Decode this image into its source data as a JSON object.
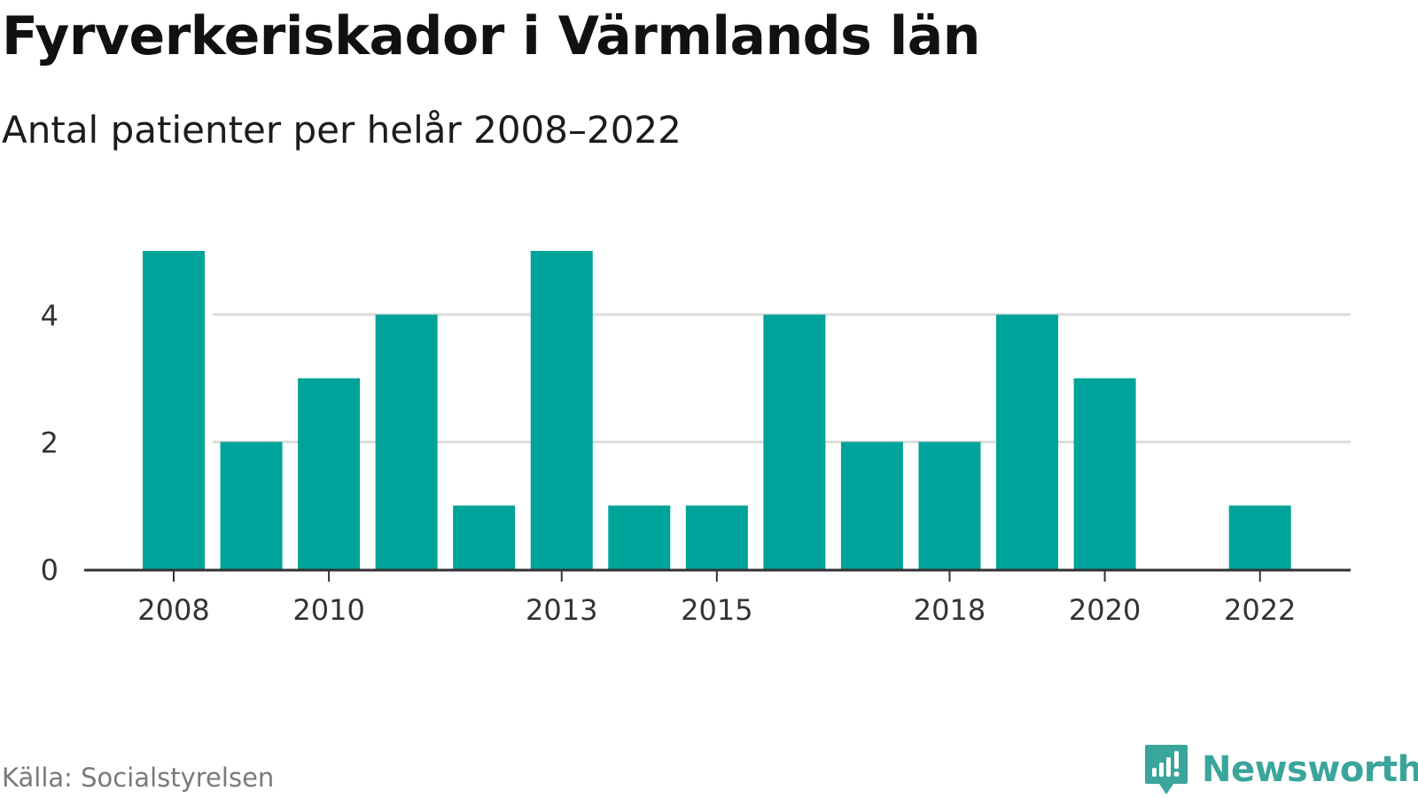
{
  "title": "Fyrverkeriskador i Värmlands län",
  "subtitle": "Antal patienter per helår 2008–2022",
  "source": "Källa: Socialstyrelsen",
  "brand": {
    "name": "Newsworthy",
    "icon": "newsworthy-logo-icon"
  },
  "colors": {
    "bar": "#00a399",
    "grid": "#dcdcdc",
    "axis": "#333333",
    "brand": "#3aa59b"
  },
  "chart_data": {
    "type": "bar",
    "title": "Fyrverkeriskador i Värmlands län",
    "subtitle": "Antal patienter per helår 2008–2022",
    "xlabel": "",
    "ylabel": "",
    "categories": [
      2008,
      2009,
      2010,
      2011,
      2012,
      2013,
      2014,
      2015,
      2016,
      2017,
      2018,
      2019,
      2020,
      2021,
      2022
    ],
    "values": [
      5,
      2,
      3,
      4,
      1,
      5,
      1,
      1,
      4,
      2,
      2,
      4,
      3,
      0,
      1
    ],
    "x_tick_labels": [
      "2008",
      "2010",
      "2013",
      "2015",
      "2018",
      "2020",
      "2022"
    ],
    "y_ticks": [
      0,
      2,
      4
    ],
    "ylim": [
      0,
      5
    ],
    "grid": "horizontal",
    "legend": "none"
  }
}
